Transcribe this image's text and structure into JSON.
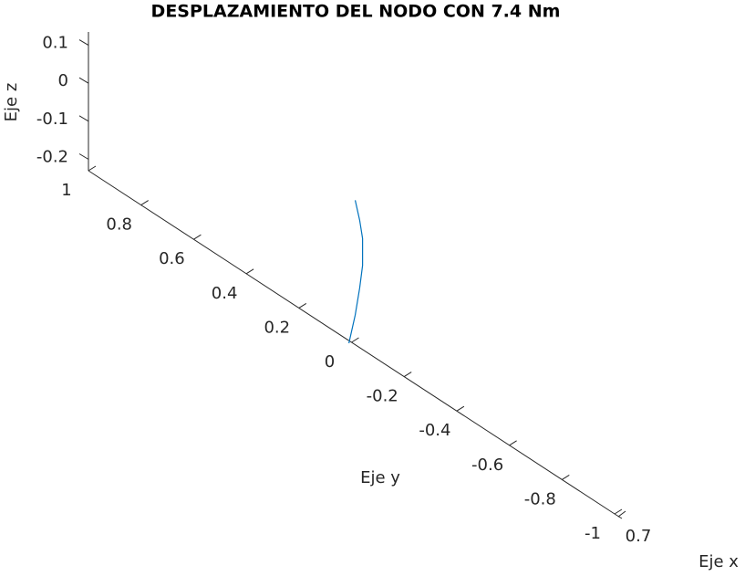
{
  "chart_data": {
    "type": "line",
    "title": "DESPLAZAMIENTO DEL NODO CON 7.4 Nm",
    "x_label": "Eje x",
    "y_label": "Eje y",
    "z_label": "Eje z",
    "xticks": [
      0.7
    ],
    "ylim": [
      -1,
      1
    ],
    "yticks": [
      -1,
      -0.8,
      -0.6,
      -0.4,
      -0.2,
      0,
      0.2,
      0.4,
      0.6,
      0.8,
      1
    ],
    "zlim": [
      -0.23,
      0.135
    ],
    "zticks": [
      -0.2,
      -0.1,
      0,
      0.1
    ],
    "series": [
      {
        "color": "#0072bd",
        "y": [
          0.01,
          -0.014,
          -0.031,
          -0.042,
          -0.042,
          -0.031,
          -0.014
        ],
        "z": [
          -0.237,
          -0.152,
          -0.073,
          -0.009,
          0.062,
          0.105,
          0.15
        ]
      }
    ]
  }
}
